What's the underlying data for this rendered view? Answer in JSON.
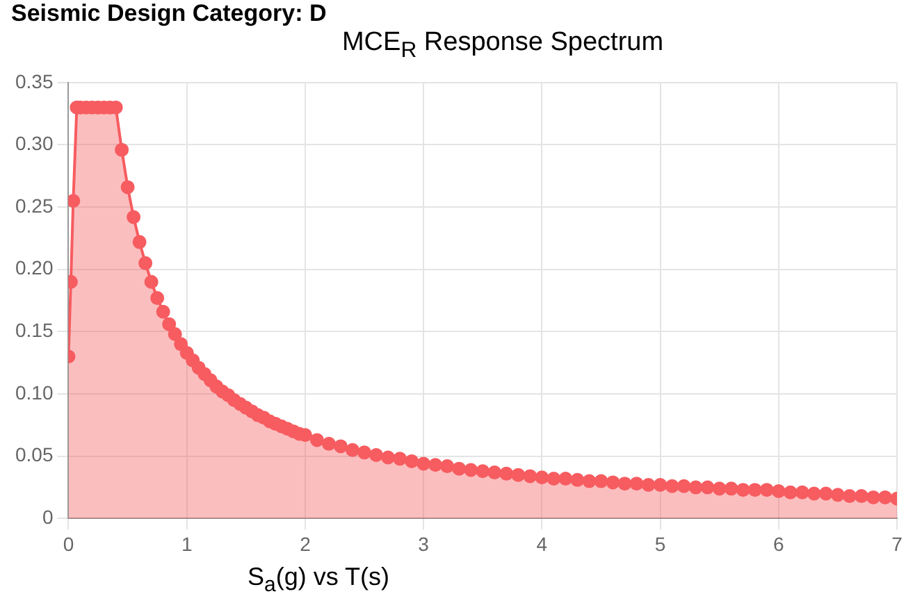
{
  "chart_data": {
    "type": "area",
    "title": "Seismic Design Category: D",
    "subtitle": "MCE$_{R}$ Response Spectrum",
    "xlabel": "S$_{a}$(g) vs T(s)",
    "x": [
      0,
      0.02,
      0.04,
      0.07,
      0.1,
      0.15,
      0.2,
      0.25,
      0.3,
      0.35,
      0.4,
      0.45,
      0.5,
      0.55,
      0.6,
      0.65,
      0.7,
      0.75,
      0.8,
      0.85,
      0.9,
      0.95,
      1.0,
      1.05,
      1.1,
      1.15,
      1.2,
      1.25,
      1.3,
      1.35,
      1.4,
      1.45,
      1.5,
      1.55,
      1.6,
      1.65,
      1.7,
      1.75,
      1.8,
      1.85,
      1.9,
      1.95,
      2.0,
      2.1,
      2.2,
      2.3,
      2.4,
      2.5,
      2.6,
      2.7,
      2.8,
      2.9,
      3.0,
      3.1,
      3.2,
      3.3,
      3.4,
      3.5,
      3.6,
      3.7,
      3.8,
      3.9,
      4.0,
      4.1,
      4.2,
      4.3,
      4.4,
      4.5,
      4.6,
      4.7,
      4.8,
      4.9,
      5.0,
      5.1,
      5.2,
      5.3,
      5.4,
      5.5,
      5.6,
      5.7,
      5.8,
      5.9,
      6.0,
      6.1,
      6.2,
      6.3,
      6.4,
      6.5,
      6.6,
      6.7,
      6.8,
      6.9,
      7.0
    ],
    "series": [
      {
        "color": "#f65c60",
        "values": [
          0.13,
          0.19,
          0.255,
          0.33,
          0.33,
          0.33,
          0.33,
          0.33,
          0.33,
          0.33,
          0.33,
          0.296,
          0.266,
          0.242,
          0.222,
          0.205,
          0.19,
          0.177,
          0.166,
          0.156,
          0.148,
          0.14,
          0.133,
          0.127,
          0.121,
          0.116,
          0.111,
          0.106,
          0.102,
          0.099,
          0.095,
          0.092,
          0.089,
          0.086,
          0.083,
          0.081,
          0.078,
          0.076,
          0.074,
          0.072,
          0.07,
          0.068,
          0.067,
          0.063,
          0.06,
          0.058,
          0.055,
          0.053,
          0.051,
          0.049,
          0.048,
          0.046,
          0.044,
          0.043,
          0.042,
          0.04,
          0.039,
          0.038,
          0.037,
          0.036,
          0.035,
          0.034,
          0.033,
          0.032,
          0.032,
          0.031,
          0.03,
          0.03,
          0.029,
          0.028,
          0.028,
          0.027,
          0.027,
          0.026,
          0.026,
          0.025,
          0.025,
          0.024,
          0.024,
          0.023,
          0.023,
          0.023,
          0.022,
          0.021,
          0.021,
          0.02,
          0.02,
          0.019,
          0.018,
          0.018,
          0.017,
          0.017,
          0.016
        ]
      }
    ],
    "xlim": [
      0,
      7
    ],
    "xticks": [
      0,
      1,
      2,
      3,
      4,
      5,
      6,
      7
    ],
    "ylim": [
      0,
      0.35
    ],
    "yticks": [
      0,
      {
        "value": 0.05,
        "label": "0.05"
      },
      {
        "value": 0.1,
        "label": "0.10"
      },
      {
        "value": 0.15,
        "label": "0.15"
      },
      {
        "value": 0.2,
        "label": "0.20"
      },
      {
        "value": 0.25,
        "label": "0.25"
      },
      {
        "value": 0.3,
        "label": "0.30"
      },
      {
        "value": 0.35,
        "label": "0.35"
      }
    ],
    "grid": true,
    "marker": "circle"
  }
}
